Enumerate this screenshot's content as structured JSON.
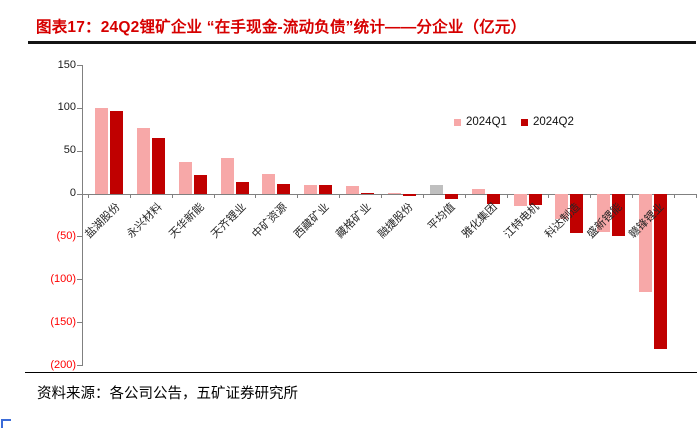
{
  "page": {
    "background": "#ffffff",
    "edge_artifact_color": "#3a6bd8"
  },
  "header": {
    "title": "图表17：24Q2锂矿企业 “在手现金-流动负债”统计——分企业（亿元）",
    "title_color": "#d60000"
  },
  "chart_data": {
    "type": "bar",
    "title": "24Q2锂矿企业 “在手现金-流动负债”统计——分企业（亿元）",
    "unit": "亿元",
    "categories": [
      "盐湖股份",
      "永兴材料",
      "天华新能",
      "天齐锂业",
      "中矿资源",
      "西藏矿业",
      "藏格矿业",
      "融捷股份",
      "平均值",
      "雅化集团",
      "江特电机",
      "科达制造",
      "盛新锂能",
      "赣锋锂业"
    ],
    "series": [
      {
        "name": "2024Q1",
        "color": "#f7a8a8",
        "values": [
          100,
          77,
          37,
          42,
          23,
          10,
          9,
          0.5,
          10,
          5,
          -15,
          -30,
          -45,
          -115
        ]
      },
      {
        "name": "2024Q2",
        "color": "#c00000",
        "values": [
          96,
          65,
          22,
          14,
          11,
          10,
          1,
          -3,
          -6,
          -12,
          -13,
          -46,
          -49,
          -181
        ]
      }
    ],
    "highlight": {
      "category": "平均值",
      "series": "2024Q1",
      "color": "#bfbfbf"
    },
    "ylim": [
      -200,
      150
    ],
    "yticks": [
      {
        "value": 150,
        "label": "150"
      },
      {
        "value": 100,
        "label": "100"
      },
      {
        "value": 50,
        "label": "50"
      },
      {
        "value": 0,
        "label": "0"
      },
      {
        "value": -50,
        "label": "(50)"
      },
      {
        "value": -100,
        "label": "(100)"
      },
      {
        "value": -150,
        "label": "(150)"
      },
      {
        "value": -200,
        "label": "(200)"
      }
    ],
    "grid": false,
    "axis_color": "#808080",
    "positive_tick_color": "#1a1a1a",
    "negative_tick_color": "#ff0000",
    "legend_position": "inside-top-right",
    "xlabel": "",
    "ylabel": ""
  },
  "legend": {
    "items": [
      {
        "label": "2024Q1",
        "color": "#f7a8a8"
      },
      {
        "label": "2024Q2",
        "color": "#c00000"
      }
    ]
  },
  "footer": {
    "source": "资料来源：各公司公告，五矿证券研究所"
  }
}
